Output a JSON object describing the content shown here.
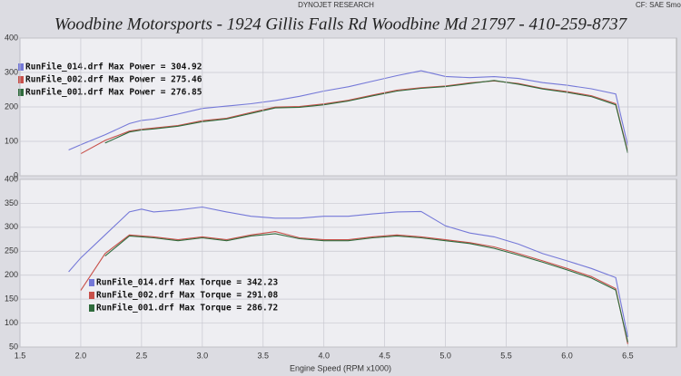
{
  "header": {
    "brand": "DYNOJET RESEARCH",
    "settings": "CF: SAE  Smoot"
  },
  "chart_data": [
    {
      "type": "line",
      "title": "Woodbine Motorsports - 1924 Gillis Falls Rd Woodbine Md 21797 - 410-259-8737",
      "x": [
        1.9,
        2.0,
        2.2,
        2.4,
        2.5,
        2.6,
        2.8,
        3.0,
        3.2,
        3.4,
        3.6,
        3.8,
        4.0,
        4.2,
        4.4,
        4.6,
        4.8,
        5.0,
        5.2,
        5.4,
        5.6,
        5.8,
        6.0,
        6.2,
        6.4,
        6.5
      ],
      "xlim": [
        1.5,
        6.9
      ],
      "ylim": [
        0,
        400
      ],
      "yticks": [
        0,
        100,
        200,
        300,
        400
      ],
      "grid": true,
      "legend": "upper-left",
      "series": [
        {
          "name": "RunFile_014.drf Max Power = 304.92",
          "color": "#7478d8",
          "values": [
            74.9,
            89.9,
            119,
            151.7,
            160.9,
            164.4,
            179.1,
            195.4,
            202.3,
            209.1,
            218.7,
            230.8,
            246,
            258.3,
            274.8,
            290.8,
            304.92,
            288.5,
            285.1,
            287.9,
            282.6,
            270.6,
            262.8,
            252.6,
            237.6,
            87.9
          ]
        },
        {
          "name": "RunFile_002.drf Max Power = 275.46",
          "color": "#c8504a",
          "values": [
            null,
            64,
            102.6,
            129.8,
            135,
            138.6,
            146.1,
            159.9,
            167,
            183.9,
            199.5,
            201.1,
            208.7,
            219.1,
            234.6,
            248.7,
            255.9,
            260.9,
            270,
            275.46,
            268,
            254,
            244.5,
            232.6,
            209.6,
            69.3
          ]
        },
        {
          "name": "RunFile_001.drf Max Power = 276.85",
          "color": "#2f6b3c",
          "values": [
            null,
            null,
            95,
            127,
            133,
            136,
            144,
            157,
            165,
            181,
            197,
            199,
            206,
            217,
            232,
            246,
            254,
            259,
            268,
            276.85,
            266,
            252,
            242,
            230,
            206,
            66
          ]
        }
      ]
    },
    {
      "type": "line",
      "x_label": "Engine Speed (RPM x1000)",
      "x": [
        1.9,
        2.0,
        2.2,
        2.4,
        2.5,
        2.6,
        2.8,
        3.0,
        3.2,
        3.4,
        3.6,
        3.8,
        4.0,
        4.2,
        4.4,
        4.6,
        4.8,
        5.0,
        5.2,
        5.4,
        5.6,
        5.8,
        6.0,
        6.2,
        6.4,
        6.5
      ],
      "xlim": [
        1.5,
        6.9
      ],
      "xticks": [
        1.5,
        {
          "value": 2,
          "label": "2.0"
        },
        2.5,
        {
          "value": 3,
          "label": "3.0"
        },
        3.5,
        {
          "value": 4,
          "label": "4.0"
        },
        4.5,
        {
          "value": 5,
          "label": "5.0"
        },
        5.5,
        {
          "value": 6,
          "label": "6.0"
        },
        6.5
      ],
      "ylim": [
        50,
        400
      ],
      "yticks": [
        50,
        100,
        150,
        200,
        250,
        300,
        350,
        400
      ],
      "grid": true,
      "legend": "lower-left",
      "series": [
        {
          "name": "RunFile_014.drf Max Torque = 342.23",
          "color": "#7478d8",
          "values": [
            207,
            236,
            284,
            332,
            338,
            332,
            336,
            342.23,
            332,
            323,
            319,
            319,
            323,
            323,
            328,
            332,
            333,
            303,
            288,
            280,
            265,
            245,
            230,
            214,
            195,
            71
          ]
        },
        {
          "name": "RunFile_002.drf Max Torque = 291.08",
          "color": "#c8504a",
          "values": [
            null,
            168,
            245,
            284,
            282,
            280,
            274,
            280,
            274,
            284,
            291.08,
            278,
            274,
            274,
            280,
            284,
            280,
            274,
            268,
            259,
            245,
            230,
            214,
            197,
            172,
            56
          ]
        },
        {
          "name": "RunFile_001.drf Max Torque = 286.72",
          "color": "#2f6b3c",
          "values": [
            null,
            null,
            240,
            282,
            280,
            278,
            272,
            278,
            272,
            282,
            286.72,
            276,
            272,
            272,
            278,
            282,
            278,
            272,
            266,
            256,
            242,
            227,
            211,
            194,
            169,
            60
          ]
        }
      ]
    }
  ]
}
